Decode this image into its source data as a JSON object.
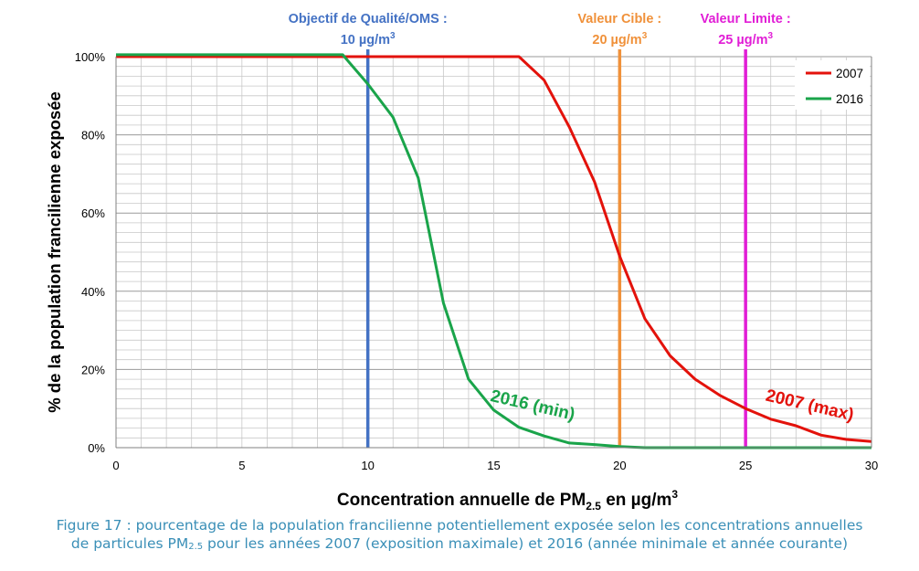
{
  "chart_data": {
    "type": "line",
    "xlabel": "Concentration annuelle de PM",
    "xlabel_sub": "2.5",
    "xlabel_tail": " en µg/m",
    "xlabel_sup": "3",
    "ylabel": "% de la population francilienne exposée",
    "xlim": [
      0,
      30
    ],
    "ylim": [
      0,
      100
    ],
    "x_ticks": [
      0,
      5,
      10,
      15,
      20,
      25,
      30
    ],
    "x_tick_labels": [
      "0",
      "5",
      "10",
      "15",
      "20",
      "25",
      "30"
    ],
    "y_ticks": [
      0,
      20,
      40,
      60,
      80,
      100
    ],
    "y_tick_labels": [
      "0%",
      "20%",
      "40%",
      "60%",
      "80%",
      "100%"
    ],
    "grid": true,
    "legend_position": "top-right",
    "series": [
      {
        "name": "2007",
        "color": "#e3120b",
        "x": [
          0,
          1,
          2,
          3,
          4,
          5,
          6,
          7,
          8,
          9,
          10,
          11,
          12,
          13,
          14,
          15,
          16,
          17,
          18,
          19,
          20,
          21,
          22,
          23,
          24,
          25,
          26,
          27,
          28,
          29,
          30
        ],
        "y": [
          100,
          100,
          100,
          100,
          100,
          100,
          100,
          100,
          100,
          100,
          100,
          100,
          100,
          100,
          100,
          100,
          100,
          94,
          82,
          68,
          49,
          33,
          23.5,
          17.5,
          13.3,
          10,
          7.3,
          5.6,
          3.2,
          2.1,
          1.6
        ]
      },
      {
        "name": "2016",
        "color": "#1aa44a",
        "x": [
          0,
          1,
          2,
          3,
          4,
          5,
          6,
          7,
          8,
          9,
          10,
          11,
          12,
          13,
          14,
          15,
          16,
          17,
          18,
          19,
          20,
          21,
          22,
          23,
          24,
          25,
          26,
          27,
          28,
          29,
          30
        ],
        "y": [
          100.5,
          100.5,
          100.5,
          100.5,
          100.5,
          100.5,
          100.5,
          100.5,
          100.5,
          100.5,
          93,
          84.5,
          69,
          37,
          17.5,
          9.6,
          5.2,
          3,
          1.2,
          0.8,
          0.3,
          0,
          0,
          0,
          0,
          0,
          0,
          0,
          0,
          0,
          0
        ]
      }
    ],
    "reference_lines": [
      {
        "x": 10,
        "color": "#4472c4",
        "label_line1": "Objectif de Qualité/OMS :",
        "label_line2": "10 µg/m",
        "label_sup": "3"
      },
      {
        "x": 20,
        "color": "#f0913a",
        "label_line1": "Valeur Cible :",
        "label_line2": "20 µg/m",
        "label_sup": "3"
      },
      {
        "x": 25,
        "color": "#e11ed6",
        "label_line1": "Valeur Limite :",
        "label_line2": "25 µg/m",
        "label_sup": "3"
      }
    ],
    "annotations": [
      {
        "text": "2016 (min)",
        "x": 16.5,
        "y": 9.5,
        "color": "#1aa44a",
        "rotate": 13
      },
      {
        "text": "2007 (max)",
        "x": 27.5,
        "y": 9.5,
        "color": "#e3120b",
        "rotate": 13
      }
    ]
  },
  "caption": {
    "line1": "Figure 17 : pourcentage de la population francilienne potentiellement exposée selon les concentrations annuelles",
    "line2_a": "de particules PM",
    "line2_sub": "2.5",
    "line2_b": " pour les années 2007 (exposition maximale) et 2016 (année minimale et année courante)"
  }
}
